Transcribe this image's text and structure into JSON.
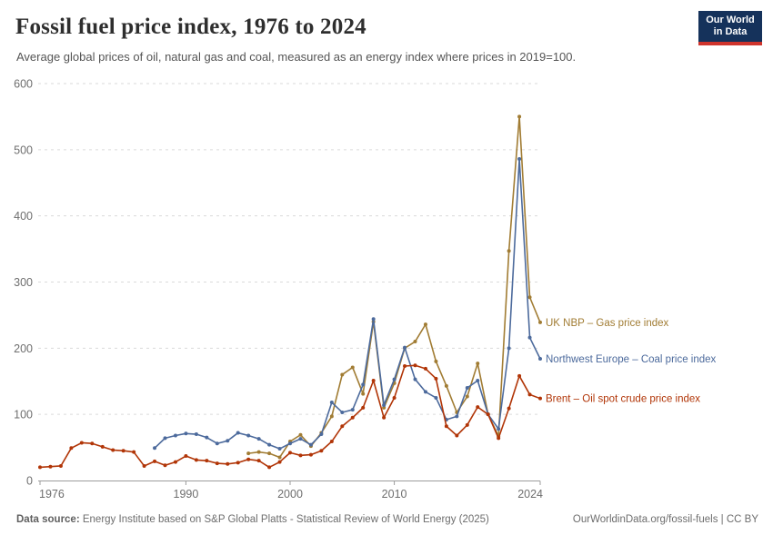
{
  "header": {
    "title": "Fossil fuel price index, 1976 to 2024",
    "subtitle": "Average global prices of oil, natural gas and coal, measured as an energy index where prices in 2019=100."
  },
  "logo": {
    "line1": "Our World",
    "line2": "in Data"
  },
  "chart_data": {
    "type": "line",
    "title": "Fossil fuel price index, 1976 to 2024",
    "xlabel": "",
    "ylabel": "",
    "ylim": [
      0,
      600
    ],
    "yticks": [
      0,
      100,
      200,
      300,
      400,
      500,
      600
    ],
    "xticks": [
      1976,
      1990,
      2000,
      2010,
      2024
    ],
    "xlim": [
      1976,
      2024
    ],
    "grid": "horizontal-dashed",
    "legend_position": "right-of-line-ends",
    "marker": "circle",
    "series": [
      {
        "name": "UK NBP – Gas price index",
        "color": "#a17c33",
        "years": [
          1996,
          1997,
          1998,
          1999,
          2000,
          2001,
          2002,
          2003,
          2004,
          2005,
          2006,
          2007,
          2008,
          2009,
          2010,
          2011,
          2012,
          2013,
          2014,
          2015,
          2016,
          2017,
          2018,
          2019,
          2020,
          2021,
          2022,
          2023,
          2024
        ],
        "values": [
          41,
          43,
          41,
          35,
          59,
          69,
          52,
          72,
          97,
          160,
          171,
          131,
          240,
          110,
          147,
          200,
          210,
          236,
          180,
          143,
          103,
          127,
          177,
          100,
          67,
          347,
          550,
          277,
          239
        ]
      },
      {
        "name": "Northwest Europe – Coal price index",
        "color": "#4c6a9c",
        "years": [
          1987,
          1988,
          1989,
          1990,
          1991,
          1992,
          1993,
          1994,
          1995,
          1996,
          1997,
          1998,
          1999,
          2000,
          2001,
          2002,
          2003,
          2004,
          2005,
          2006,
          2007,
          2008,
          2009,
          2010,
          2011,
          2012,
          2013,
          2014,
          2015,
          2016,
          2017,
          2018,
          2019,
          2020,
          2021,
          2022,
          2023,
          2024
        ],
        "values": [
          49,
          64,
          68,
          71,
          70,
          65,
          56,
          60,
          72,
          68,
          63,
          54,
          48,
          56,
          63,
          54,
          70,
          118,
          103,
          107,
          145,
          244,
          114,
          153,
          201,
          153,
          134,
          125,
          92,
          97,
          140,
          151,
          100,
          78,
          200,
          486,
          216,
          184
        ]
      },
      {
        "name": "Brent – Oil spot crude price index",
        "color": "#b13507",
        "years": [
          1976,
          1977,
          1978,
          1979,
          1980,
          1981,
          1982,
          1983,
          1984,
          1985,
          1986,
          1987,
          1988,
          1989,
          1990,
          1991,
          1992,
          1993,
          1994,
          1995,
          1996,
          1997,
          1998,
          1999,
          2000,
          2001,
          2002,
          2003,
          2004,
          2005,
          2006,
          2007,
          2008,
          2009,
          2010,
          2011,
          2012,
          2013,
          2014,
          2015,
          2016,
          2017,
          2018,
          2019,
          2020,
          2021,
          2022,
          2023,
          2024
        ],
        "values": [
          20,
          21,
          22,
          49,
          57,
          56,
          51,
          46,
          45,
          43,
          22,
          29,
          23,
          28,
          37,
          31,
          30,
          26,
          25,
          27,
          32,
          30,
          20,
          28,
          42,
          38,
          39,
          45,
          59,
          82,
          95,
          110,
          151,
          95,
          125,
          173,
          174,
          169,
          154,
          82,
          68,
          84,
          111,
          100,
          64,
          109,
          158,
          130,
          124
        ]
      }
    ]
  },
  "footer": {
    "source_label": "Data source:",
    "source_text": " Energy Institute based on S&P Global Platts - Statistical Review of World Energy (2025)",
    "link_text": "OurWorldinData.org/fossil-fuels | CC BY"
  }
}
